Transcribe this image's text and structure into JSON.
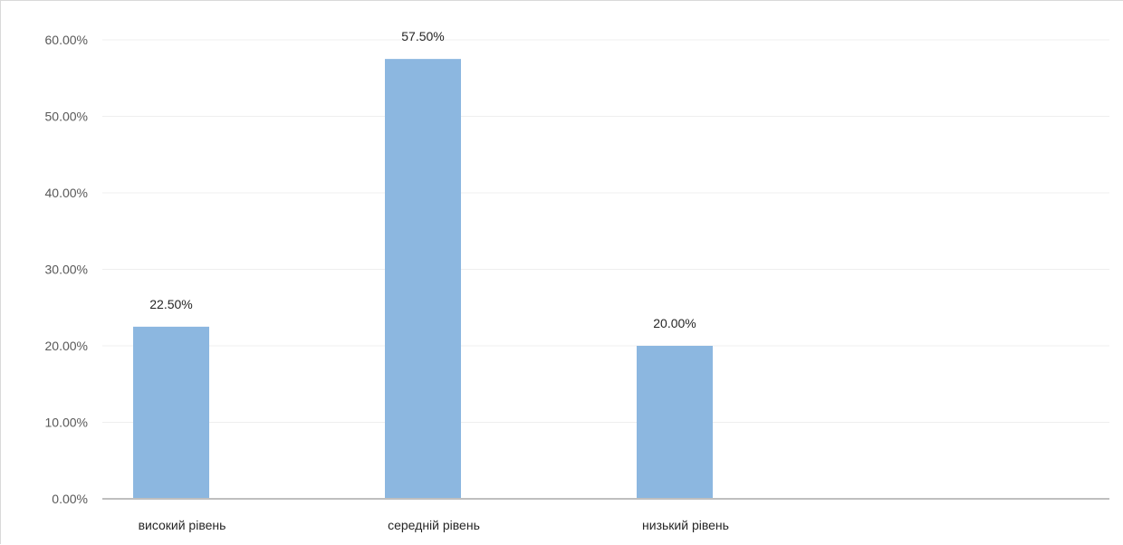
{
  "chart_data": {
    "type": "bar",
    "categories": [
      "високий рівень",
      "середній рівень",
      "низький рівень"
    ],
    "values": [
      22.5,
      57.5,
      20.0
    ],
    "data_labels": [
      "22.50%",
      "57.50%",
      "20.00%"
    ],
    "ylim": [
      0,
      60
    ],
    "yticks": [
      0,
      10,
      20,
      30,
      40,
      50,
      60
    ],
    "ytick_labels": [
      "0.00%",
      "10.00%",
      "20.00%",
      "30.00%",
      "40.00%",
      "50.00%",
      "60.00%"
    ],
    "title": "",
    "xlabel": "",
    "ylabel": "",
    "grid": true,
    "legend": "none",
    "colors": {
      "bar": "#8cb7e0",
      "grid": "#efefef",
      "axis": "#bfbfbf"
    }
  }
}
